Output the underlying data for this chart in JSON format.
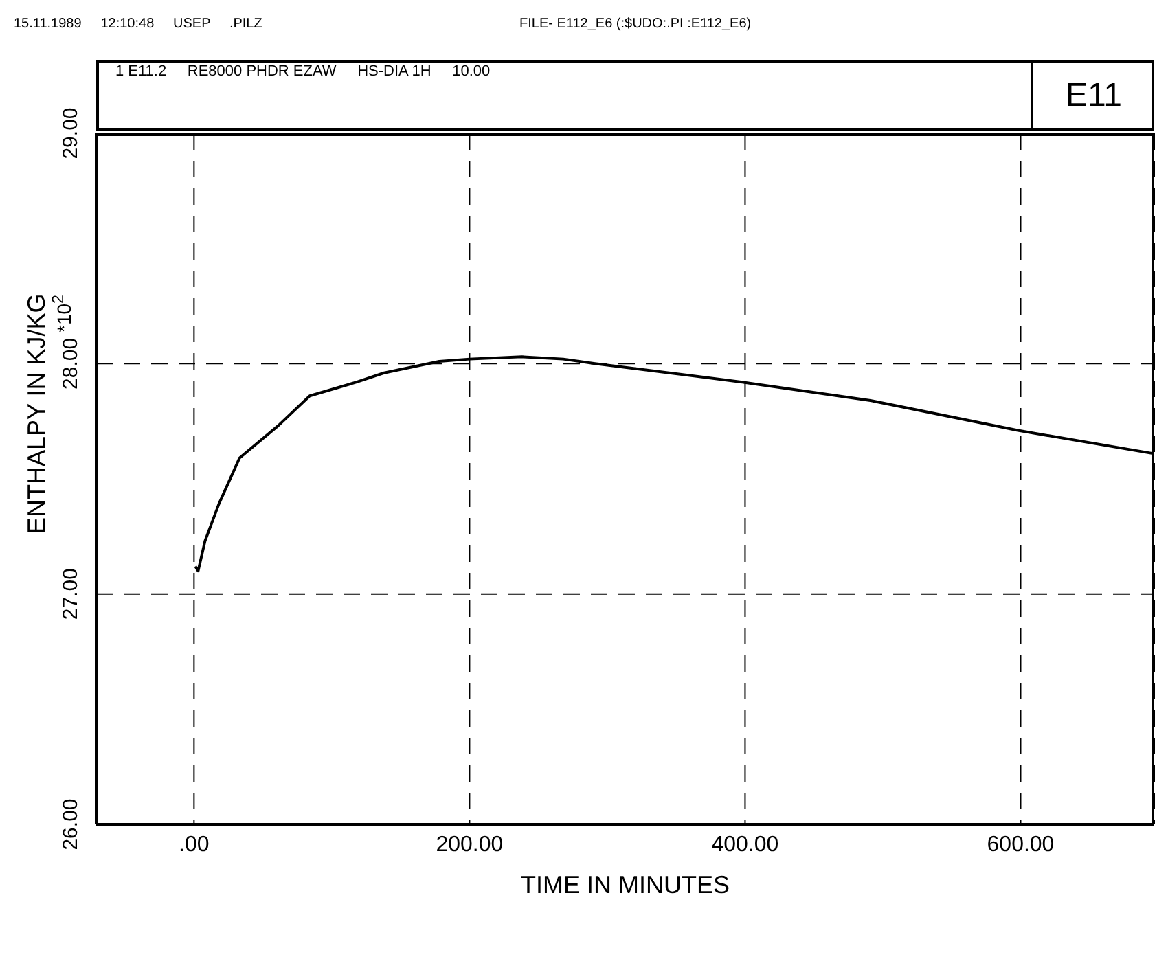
{
  "chart_data": {
    "type": "line",
    "title": "E11",
    "subtitle": "1 E11.2     RE8000 PHDR EZAW     HS-DIA 1H     10.00",
    "xlabel": "TIME IN MINUTES",
    "ylabel": "ENTHALPY IN KJ/KG",
    "annotations": [
      "15.11.1989     12:10:48     USEP     .PILZ",
      "FILE- E112_E6 (:$UDO:.PI :E112_E6)",
      "*10$^{2}$"
    ],
    "x": [
      1,
      3,
      8,
      18,
      33,
      43,
      61,
      84,
      118,
      138,
      178,
      200,
      238,
      268,
      291,
      398,
      491,
      598,
      696
    ],
    "series": [
      {
        "color": "#000000",
        "values": [
          27.12,
          27.1,
          27.23,
          27.39,
          27.59,
          27.64,
          27.73,
          27.86,
          27.92,
          27.96,
          28.01,
          28.02,
          28.03,
          28.02,
          28.0,
          27.92,
          27.84,
          27.71,
          27.61
        ]
      }
    ],
    "xlim": [
      -71,
      697
    ],
    "ylim": [
      26,
      29
    ],
    "xticks": [
      {
        "value": 0,
        "label": ".00"
      },
      {
        "value": 200,
        "label": "200.00"
      },
      {
        "value": 400,
        "label": "400.00"
      },
      {
        "value": 600,
        "label": "600.00"
      }
    ],
    "yticks": [
      {
        "value": 26,
        "label": "26.00"
      },
      {
        "value": 27,
        "label": "27.00"
      },
      {
        "value": 28,
        "label": "28.00"
      },
      {
        "value": 29,
        "label": "29.00"
      }
    ],
    "grid": true,
    "marker": "none",
    "line_style": "solid"
  }
}
